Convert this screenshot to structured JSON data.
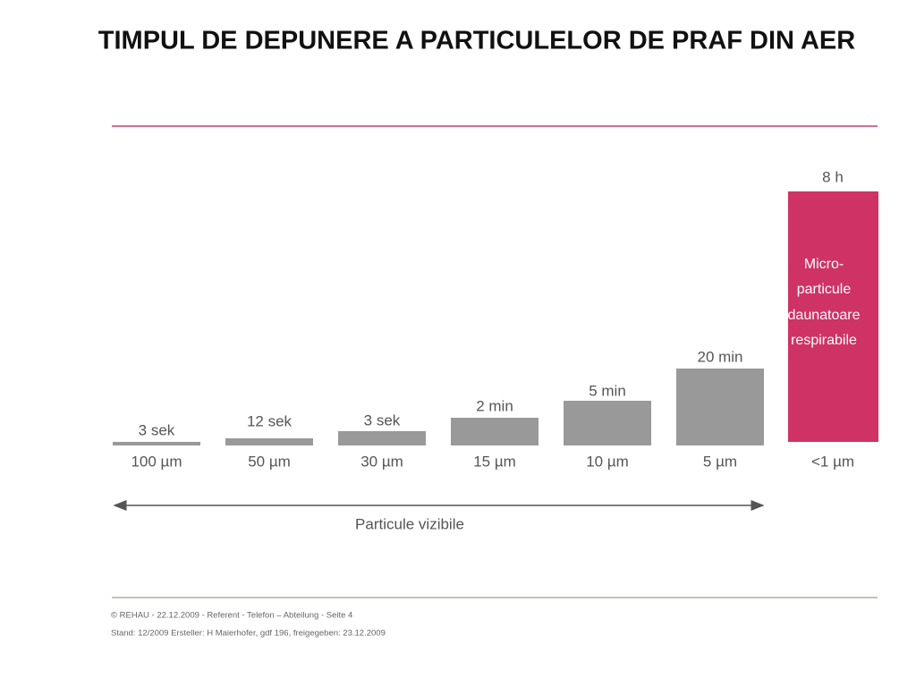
{
  "header": {
    "title": "TIMPUL DE DEPUNERE A PARTICULELOR DE PRAF DIN AER"
  },
  "items": [
    {
      "time": "3 sek",
      "size": "100 µm"
    },
    {
      "time": "12 sek",
      "size": "50 µm"
    },
    {
      "time": "3 sek",
      "size": "30 µm"
    },
    {
      "time": "2 min",
      "size": "15 µm"
    },
    {
      "time": "5 min",
      "size": "10 µm"
    },
    {
      "time": "20 min",
      "size": "5 µm"
    },
    {
      "time": "8 h",
      "size": "<1 µm"
    }
  ],
  "highlight": {
    "lines": [
      "Micro-",
      "particule",
      "daunatoare",
      "respirabile"
    ]
  },
  "range_label": "Particule vizibile",
  "footer": {
    "lines": [
      "© REHAU  - 22.12.2009 - Referent - Telefon – Abteilung - Seite 4",
      "Stand: 12/2009 Ersteller: H Maierhofer, gdf 196, freigegeben: 23.12.2009"
    ]
  }
}
